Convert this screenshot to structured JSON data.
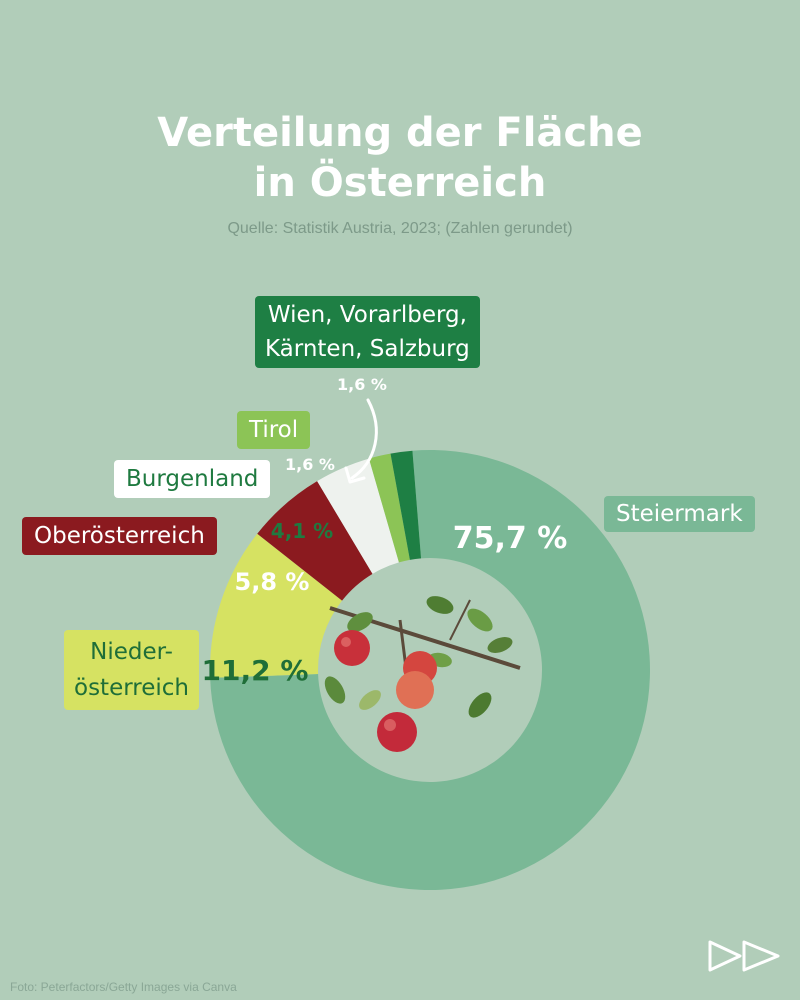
{
  "title_line1": "Verteilung der Fläche",
  "title_line2": "in Österreich",
  "source": "Quelle: Statistik Austria, 2023; (Zahlen gerundet)",
  "footer": "Foto: Peterfactors/Getty Images via Canva",
  "colors": {
    "background": "#b1cdb9",
    "steiermark": "#7ab896",
    "niederoesterreich": "#d6e262",
    "oberoesterreich": "#8b1a1f",
    "burgenland": "#eef2ee",
    "tirol": "#8cc456",
    "wien_vorarlberg_kaernten_salzburg": "#1e7f44"
  },
  "icons": [
    "forward-arrows-icon",
    "curved-arrow-icon",
    "apple-branch-image"
  ],
  "chart_data": {
    "type": "donut",
    "title": "Verteilung der Fläche in Österreich",
    "unit": "%",
    "slices": [
      {
        "name": "Steiermark",
        "value": 75.7,
        "label": "75,7 %",
        "color": "#7ab896"
      },
      {
        "name": "Nieder-österreich",
        "value": 11.2,
        "label": "11,2 %",
        "color": "#d6e262"
      },
      {
        "name": "Oberösterreich",
        "value": 5.8,
        "label": "5,8 %",
        "color": "#8b1a1f"
      },
      {
        "name": "Burgenland",
        "value": 4.1,
        "label": "4,1 %",
        "color": "#eef2ee"
      },
      {
        "name": "Tirol",
        "value": 1.6,
        "label": "1,6 %",
        "color": "#8cc456"
      },
      {
        "name": "Wien, Vorarlberg, Kärnten, Salzburg",
        "value": 1.6,
        "label": "1,6 %",
        "color": "#1e7f44"
      }
    ]
  },
  "labels": {
    "steiermark": "Steiermark",
    "nieder_line1": "Nieder-",
    "nieder_line2": "österreich",
    "ober": "Oberösterreich",
    "burgenland": "Burgenland",
    "tirol": "Tirol",
    "wien_line1": "Wien, Vorarlberg,",
    "wien_line2": "Kärnten, Salzburg"
  }
}
